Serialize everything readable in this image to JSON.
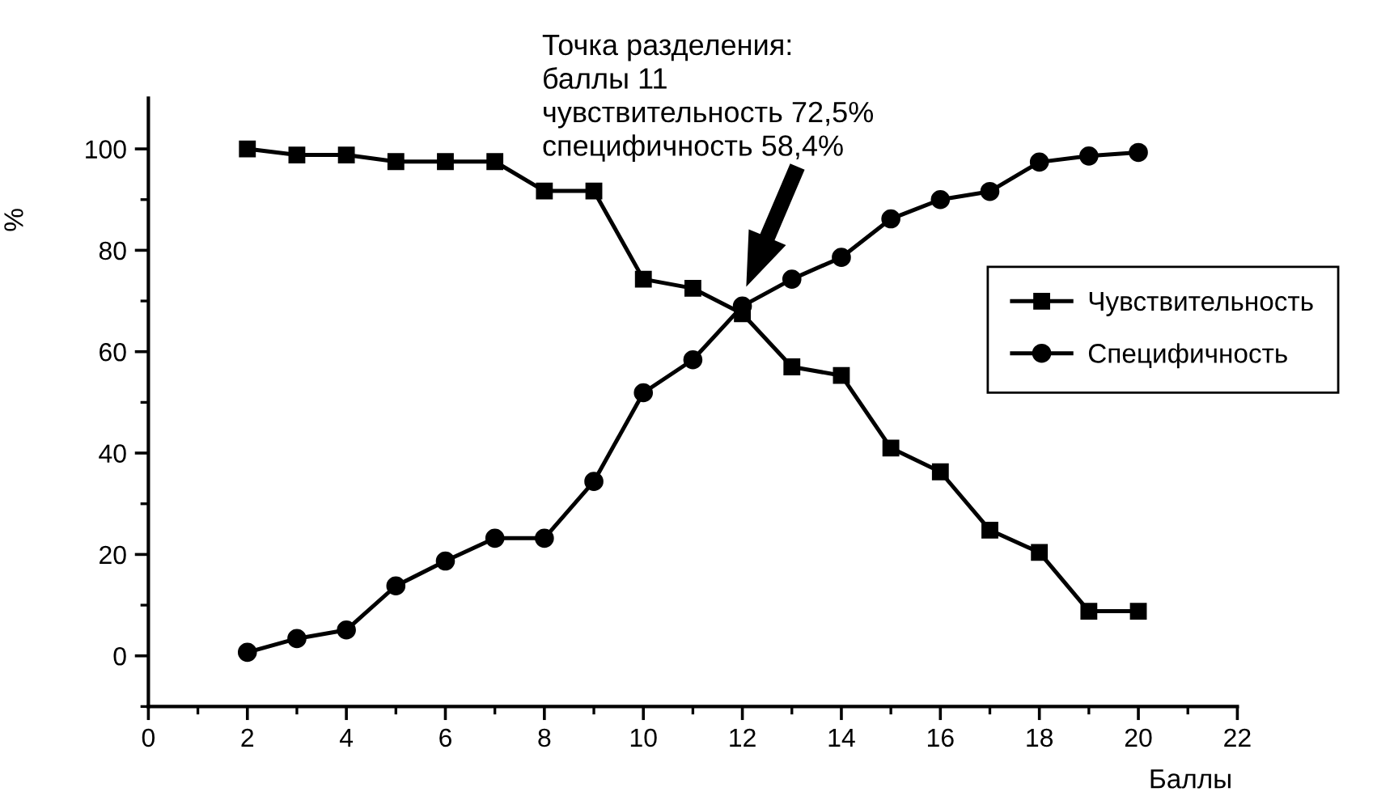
{
  "chart_data": {
    "type": "line",
    "xlabel": "Баллы",
    "ylabel": "%",
    "x": [
      2,
      3,
      4,
      5,
      6,
      7,
      8,
      9,
      10,
      11,
      12,
      13,
      14,
      15,
      16,
      17,
      18,
      19,
      20
    ],
    "series": [
      {
        "name": "Чувствительность",
        "color": "#000000",
        "marker": "square",
        "values": [
          100,
          98.8,
          98.8,
          97.5,
          97.5,
          97.5,
          91.7,
          91.7,
          74.3,
          72.5,
          67.5,
          57,
          55.3,
          41,
          36.3,
          24.8,
          20.4,
          8.8,
          8.8
        ]
      },
      {
        "name": "Специфичность",
        "color": "#000000",
        "marker": "circle",
        "values": [
          0.7,
          3.4,
          5.1,
          13.8,
          18.7,
          23.2,
          23.2,
          34.4,
          51.9,
          58.4,
          69,
          74.3,
          78.6,
          86.2,
          90,
          91.6,
          97.4,
          98.6,
          99.3
        ]
      }
    ],
    "xlim": [
      0,
      22
    ],
    "ylim": [
      -10,
      110
    ],
    "xticks": [
      0,
      {
        "value": 1,
        "label": null
      },
      2,
      {
        "value": 3,
        "label": null
      },
      4,
      {
        "value": 5,
        "label": null
      },
      6,
      {
        "value": 7,
        "label": null
      },
      8,
      {
        "value": 9,
        "label": null
      },
      10,
      {
        "value": 11,
        "label": null
      },
      12,
      {
        "value": 13,
        "label": null
      },
      14,
      {
        "value": 15,
        "label": null
      },
      16,
      {
        "value": 17,
        "label": null
      },
      18,
      {
        "value": 19,
        "label": null
      },
      20,
      {
        "value": 21,
        "label": null
      },
      22
    ],
    "yticks": [
      {
        "value": -10,
        "label": null
      },
      0,
      {
        "value": 10,
        "label": null
      },
      20,
      {
        "value": 30,
        "label": null
      },
      40,
      {
        "value": 50,
        "label": null
      },
      60,
      {
        "value": 70,
        "label": null
      },
      80,
      {
        "value": 90,
        "label": null
      },
      100
    ],
    "annotations": [
      "Точка разделения:\nбаллы 11\nчувствительность 72,5%\nспецифичность 58,4%"
    ],
    "legend": "right",
    "grid": false,
    "line_style": "solid"
  }
}
